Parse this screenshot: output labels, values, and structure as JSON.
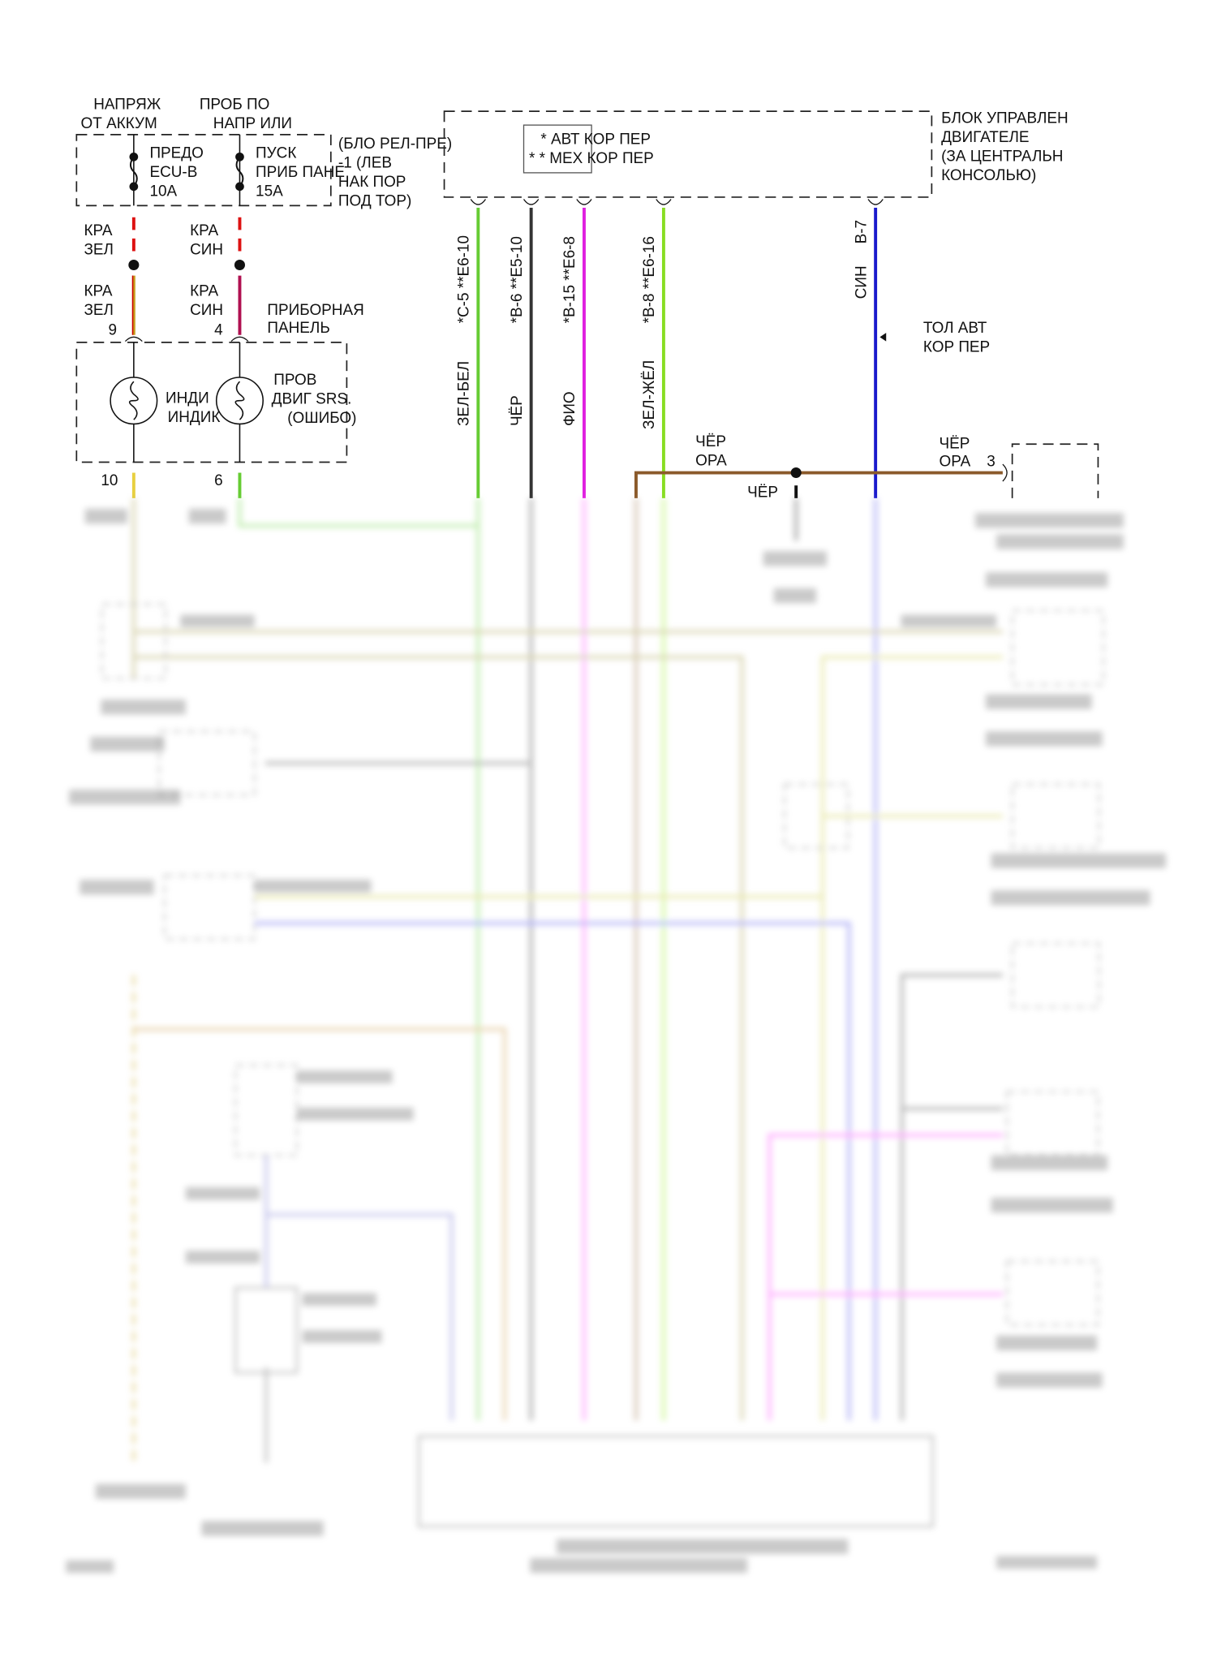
{
  "top_labels": {
    "battery_voltage": [
      "НАПРЯЖ",
      "ОТ АККУМ"
    ],
    "ignition_voltage": [
      "ПРОБ ПО",
      "НАПР ИЛИ"
    ]
  },
  "fuse_block": {
    "label": [
      "(БЛО РЕЛ-ПРЕ)",
      "-1 (ЛЕВ",
      "НАК ПОР",
      "ПОД ТОР)"
    ],
    "fuse1": [
      "ПРЕДО",
      "ECU-B",
      "10A"
    ],
    "fuse2": [
      "ПУСК",
      "ПРИБ ПАНЕ",
      "15A"
    ]
  },
  "wires_left": {
    "w1_upper": [
      "КРА",
      "ЗЕЛ"
    ],
    "w2_upper": [
      "КРА",
      "СИН"
    ],
    "w1_lower": [
      "КРА",
      "ЗЕЛ"
    ],
    "w2_lower": [
      "КРА",
      "СИН"
    ],
    "pin9": "9",
    "pin4": "4",
    "pin10": "10",
    "pin6": "6",
    "instrument_panel": [
      "ПРИБОРНАЯ",
      "ПАНЕЛЬ"
    ]
  },
  "instrument_box": {
    "lamp1": [
      "ИНДИ",
      "ИНДИК"
    ],
    "lamp2": [
      "ПРОВ",
      "ДВИГ SRS.",
      "(ОШИБО)"
    ]
  },
  "ecu": {
    "label": [
      "БЛОК УПРАВЛЕН",
      "ДВИГАТЕЛЕ",
      "(ЗА ЦЕНТРАЛЬН",
      "КОНСОЛЬЮ)"
    ],
    "legend": [
      "* АВТ КОР ПЕР",
      "* * МЕХ КОР ПЕР"
    ]
  },
  "ecu_wires": [
    {
      "pin": "*C-5 **E6-10",
      "color_name": "ЗЕЛ-БЕЛ",
      "color": "#66cc33"
    },
    {
      "pin": "*B-6 **E5-10",
      "color_name": "ЧЁР",
      "color": "#333333"
    },
    {
      "pin": "*B-15 **E6-8",
      "color_name": "ФИО",
      "color": "#e020e0"
    },
    {
      "pin": "*B-8 **E6-16",
      "color_name": "ЗЕЛ-ЖЁЛ",
      "color": "#88dd22"
    },
    {
      "pin": "B-7",
      "color_name": "СИН",
      "color": "#1a1acc"
    }
  ],
  "auto_only": [
    "ТОЛ АВТ",
    "КОР ПЕР"
  ],
  "ground_wire": {
    "left": [
      "ЧЁР",
      "ОРА"
    ],
    "right": [
      "ЧЁР",
      "ОРА"
    ],
    "pin3": "3",
    "drop": "ЧЁР",
    "color": "#8b5a2b"
  }
}
